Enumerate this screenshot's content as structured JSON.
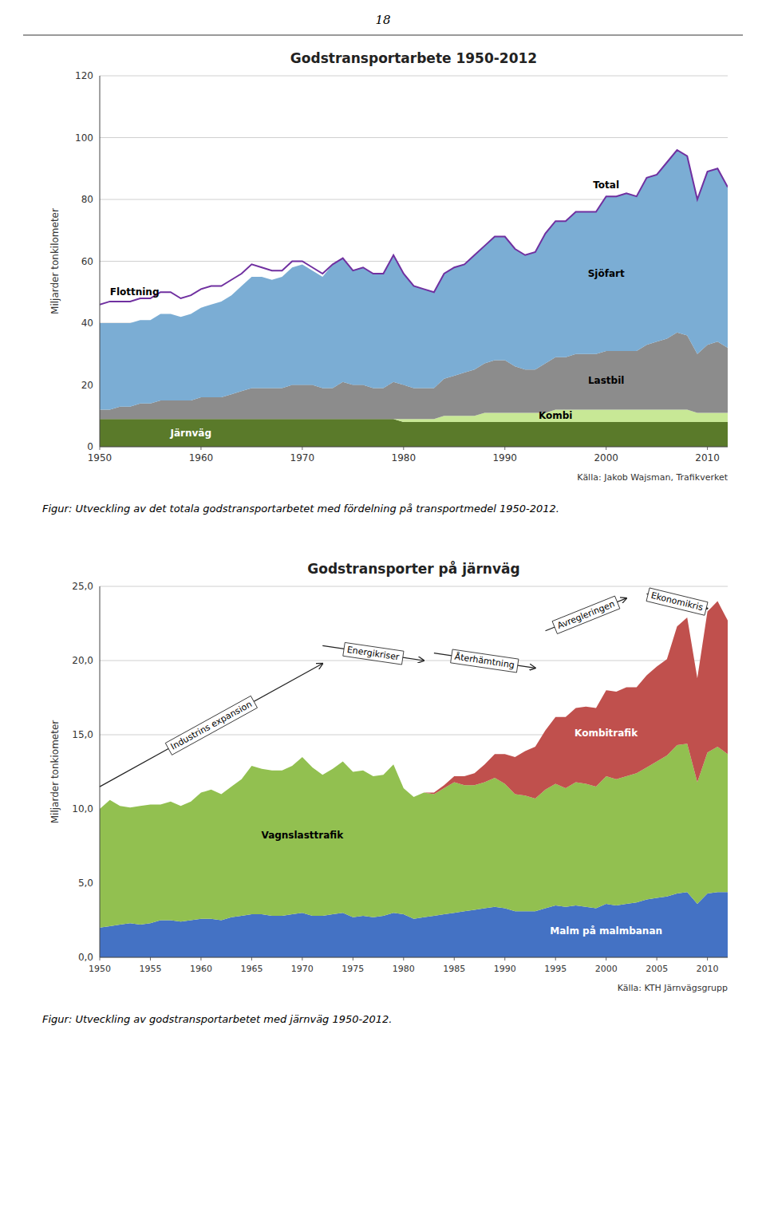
{
  "page_number": "18",
  "chart_data": [
    {
      "type": "area",
      "stacked": true,
      "grid": true,
      "title": "Godstransportarbete 1950-2012",
      "ylabel": "Miljarder tonkilometer",
      "source": "Källa: Jakob Wajsman, Trafikverket",
      "caption": "Figur: Utveckling av det totala godstransportarbetet med fördelning på transportmedel 1950-2012.",
      "x": [
        1950,
        1951,
        1952,
        1953,
        1954,
        1955,
        1956,
        1957,
        1958,
        1959,
        1960,
        1961,
        1962,
        1963,
        1964,
        1965,
        1966,
        1967,
        1968,
        1969,
        1970,
        1971,
        1972,
        1973,
        1974,
        1975,
        1976,
        1977,
        1978,
        1979,
        1980,
        1981,
        1982,
        1983,
        1984,
        1985,
        1986,
        1987,
        1988,
        1989,
        1990,
        1991,
        1992,
        1993,
        1994,
        1995,
        1996,
        1997,
        1998,
        1999,
        2000,
        2001,
        2002,
        2003,
        2004,
        2005,
        2006,
        2007,
        2008,
        2009,
        2010,
        2011,
        2012
      ],
      "xlim": [
        1950,
        2012
      ],
      "xticks": [
        1950,
        1960,
        1970,
        1980,
        1990,
        2000,
        2010
      ],
      "ylim": [
        0,
        120
      ],
      "yticks": [
        0,
        20,
        40,
        60,
        80,
        100,
        120
      ],
      "series": [
        {
          "name": "Järnväg",
          "color": "#5a7a2a",
          "values": [
            9,
            9,
            9,
            9,
            9,
            9,
            9,
            9,
            9,
            9,
            9,
            9,
            9,
            9,
            9,
            9,
            9,
            9,
            9,
            9,
            9,
            9,
            9,
            9,
            9,
            9,
            9,
            9,
            9,
            9,
            8,
            8,
            8,
            8,
            8,
            8,
            8,
            8,
            8,
            8,
            8,
            8,
            8,
            8,
            8,
            8,
            8,
            8,
            8,
            8,
            8,
            8,
            8,
            8,
            8,
            8,
            8,
            8,
            8,
            8,
            8,
            8,
            8
          ]
        },
        {
          "name": "Kombi",
          "color": "#c8e896",
          "values": [
            0,
            0,
            0,
            0,
            0,
            0,
            0,
            0,
            0,
            0,
            0,
            0,
            0,
            0,
            0,
            0,
            0,
            0,
            0,
            0,
            0,
            0,
            0,
            0,
            0,
            0,
            0,
            0,
            0,
            0,
            1,
            1,
            1,
            1,
            2,
            2,
            2,
            2,
            3,
            3,
            3,
            3,
            3,
            3,
            3,
            4,
            4,
            4,
            4,
            4,
            4,
            4,
            4,
            4,
            4,
            4,
            4,
            4,
            4,
            3,
            3,
            3,
            3
          ]
        },
        {
          "name": "Lastbil",
          "color": "#8c8c8c",
          "values": [
            3,
            3,
            4,
            4,
            5,
            5,
            6,
            6,
            6,
            6,
            7,
            7,
            7,
            8,
            9,
            10,
            10,
            10,
            10,
            11,
            11,
            11,
            10,
            10,
            12,
            11,
            11,
            10,
            10,
            12,
            11,
            10,
            10,
            10,
            12,
            13,
            14,
            15,
            16,
            17,
            17,
            15,
            14,
            14,
            16,
            17,
            17,
            18,
            18,
            18,
            19,
            19,
            19,
            19,
            21,
            22,
            23,
            25,
            24,
            19,
            22,
            23,
            21
          ]
        },
        {
          "name": "Sjöfart",
          "color": "#7badd4",
          "values": [
            28,
            28,
            27,
            27,
            27,
            27,
            28,
            28,
            27,
            28,
            29,
            30,
            31,
            32,
            34,
            36,
            36,
            35,
            36,
            38,
            39,
            37,
            36,
            40,
            40,
            37,
            38,
            37,
            37,
            41,
            36,
            33,
            32,
            31,
            34,
            35,
            35,
            37,
            38,
            40,
            40,
            38,
            37,
            38,
            42,
            44,
            44,
            46,
            46,
            46,
            50,
            50,
            51,
            50,
            54,
            54,
            57,
            59,
            58,
            50,
            56,
            56,
            52
          ]
        },
        {
          "name": "Flottning",
          "type": "line",
          "color": "#7030a0",
          "values": [
            6,
            7,
            7,
            7,
            7,
            7,
            7,
            7,
            6,
            6,
            6,
            6,
            5,
            5,
            4,
            4,
            3,
            3,
            2,
            2,
            1,
            1,
            1,
            0,
            0,
            0,
            0,
            0,
            0,
            0,
            0,
            0,
            0,
            0,
            0,
            0,
            0,
            0,
            0,
            0,
            0,
            0,
            0,
            0,
            0,
            0,
            0,
            0,
            0,
            0,
            0,
            0,
            0,
            0,
            0,
            0,
            0,
            0,
            0,
            0,
            0,
            0,
            0
          ]
        }
      ],
      "annotations": [
        {
          "text": "Total"
        }
      ]
    },
    {
      "type": "area",
      "stacked": true,
      "grid": true,
      "title": "Godstransporter på järnväg",
      "ylabel": "Miljarder tonkiometer",
      "source": "Källa: KTH Järnvägsgrupp",
      "caption": "Figur: Utveckling av godstransportarbetet med järnväg 1950-2012.",
      "x": [
        1950,
        1951,
        1952,
        1953,
        1954,
        1955,
        1956,
        1957,
        1958,
        1959,
        1960,
        1961,
        1962,
        1963,
        1964,
        1965,
        1966,
        1967,
        1968,
        1969,
        1970,
        1971,
        1972,
        1973,
        1974,
        1975,
        1976,
        1977,
        1978,
        1979,
        1980,
        1981,
        1982,
        1983,
        1984,
        1985,
        1986,
        1987,
        1988,
        1989,
        1990,
        1991,
        1992,
        1993,
        1994,
        1995,
        1996,
        1997,
        1998,
        1999,
        2000,
        2001,
        2002,
        2003,
        2004,
        2005,
        2006,
        2007,
        2008,
        2009,
        2010,
        2011,
        2012
      ],
      "xlim": [
        1950,
        2012
      ],
      "xticks": [
        1950,
        1955,
        1960,
        1965,
        1970,
        1975,
        1980,
        1985,
        1990,
        1995,
        2000,
        2005,
        2010
      ],
      "ylim": [
        0,
        25
      ],
      "yticks": [
        {
          "value": 0.0,
          "label": "0,0"
        },
        {
          "value": 5.0,
          "label": "5,0"
        },
        {
          "value": 10.0,
          "label": "10,0"
        },
        {
          "value": 15.0,
          "label": "15,0"
        },
        {
          "value": 20.0,
          "label": "20,0"
        },
        {
          "value": 25.0,
          "label": "25,0"
        }
      ],
      "series": [
        {
          "name": "Malm på malmbanan",
          "color": "#4472c4",
          "values": [
            2.0,
            2.1,
            2.2,
            2.3,
            2.2,
            2.3,
            2.5,
            2.5,
            2.4,
            2.5,
            2.6,
            2.6,
            2.5,
            2.7,
            2.8,
            2.9,
            2.9,
            2.8,
            2.8,
            2.9,
            3.0,
            2.8,
            2.8,
            2.9,
            3.0,
            2.7,
            2.8,
            2.7,
            2.8,
            3.0,
            2.9,
            2.6,
            2.7,
            2.8,
            2.9,
            3.0,
            3.1,
            3.2,
            3.3,
            3.4,
            3.3,
            3.1,
            3.1,
            3.1,
            3.3,
            3.5,
            3.4,
            3.5,
            3.4,
            3.3,
            3.6,
            3.5,
            3.6,
            3.7,
            3.9,
            4.0,
            4.1,
            4.3,
            4.4,
            3.6,
            4.3,
            4.4,
            4.4
          ]
        },
        {
          "name": "Vagnslasttrafik",
          "color": "#92c050",
          "values": [
            8.0,
            8.5,
            8.0,
            7.8,
            8.0,
            8.0,
            7.8,
            8.0,
            7.8,
            8.0,
            8.5,
            8.7,
            8.5,
            8.8,
            9.2,
            10.0,
            9.8,
            9.8,
            9.8,
            10.0,
            10.5,
            10.0,
            9.5,
            9.8,
            10.2,
            9.8,
            9.8,
            9.5,
            9.5,
            10.0,
            8.5,
            8.2,
            8.4,
            8.2,
            8.5,
            8.8,
            8.5,
            8.4,
            8.5,
            8.7,
            8.4,
            7.9,
            7.8,
            7.6,
            8.0,
            8.2,
            8.0,
            8.3,
            8.3,
            8.2,
            8.6,
            8.5,
            8.6,
            8.7,
            8.9,
            9.2,
            9.5,
            10.0,
            10.0,
            8.2,
            9.5,
            9.8,
            9.3
          ]
        },
        {
          "name": "Kombitrafik",
          "color": "#c0504d",
          "values": [
            0.0,
            0.0,
            0.0,
            0.0,
            0.0,
            0.0,
            0.0,
            0.0,
            0.0,
            0.0,
            0.0,
            0.0,
            0.0,
            0.0,
            0.0,
            0.0,
            0.0,
            0.0,
            0.0,
            0.0,
            0.0,
            0.0,
            0.0,
            0.0,
            0.0,
            0.0,
            0.0,
            0.0,
            0.0,
            0.0,
            0.0,
            0.0,
            0.0,
            0.1,
            0.2,
            0.4,
            0.6,
            0.8,
            1.2,
            1.6,
            2.0,
            2.5,
            3.0,
            3.5,
            4.0,
            4.5,
            4.8,
            5.0,
            5.2,
            5.3,
            5.8,
            5.9,
            6.0,
            5.8,
            6.2,
            6.4,
            6.5,
            8.0,
            8.5,
            7.0,
            9.5,
            9.8,
            9.0
          ]
        }
      ],
      "annotations": [
        {
          "text": "Industrins expansion",
          "x": [
            1950,
            1972
          ],
          "y": [
            11.5,
            19.8
          ]
        },
        {
          "text": "Energikriser",
          "x": [
            1972,
            1982
          ],
          "y": [
            21.0,
            20.0
          ]
        },
        {
          "text": "Återhämtning",
          "x": [
            1983,
            1993
          ],
          "y": [
            20.5,
            19.5
          ]
        },
        {
          "text": "Avregleringen",
          "x": [
            1994,
            2002
          ],
          "y": [
            22.0,
            24.2
          ]
        },
        {
          "text": "Ekonomikris",
          "x": [
            2004,
            2010
          ],
          "y": [
            24.5,
            23.5
          ]
        }
      ]
    }
  ]
}
